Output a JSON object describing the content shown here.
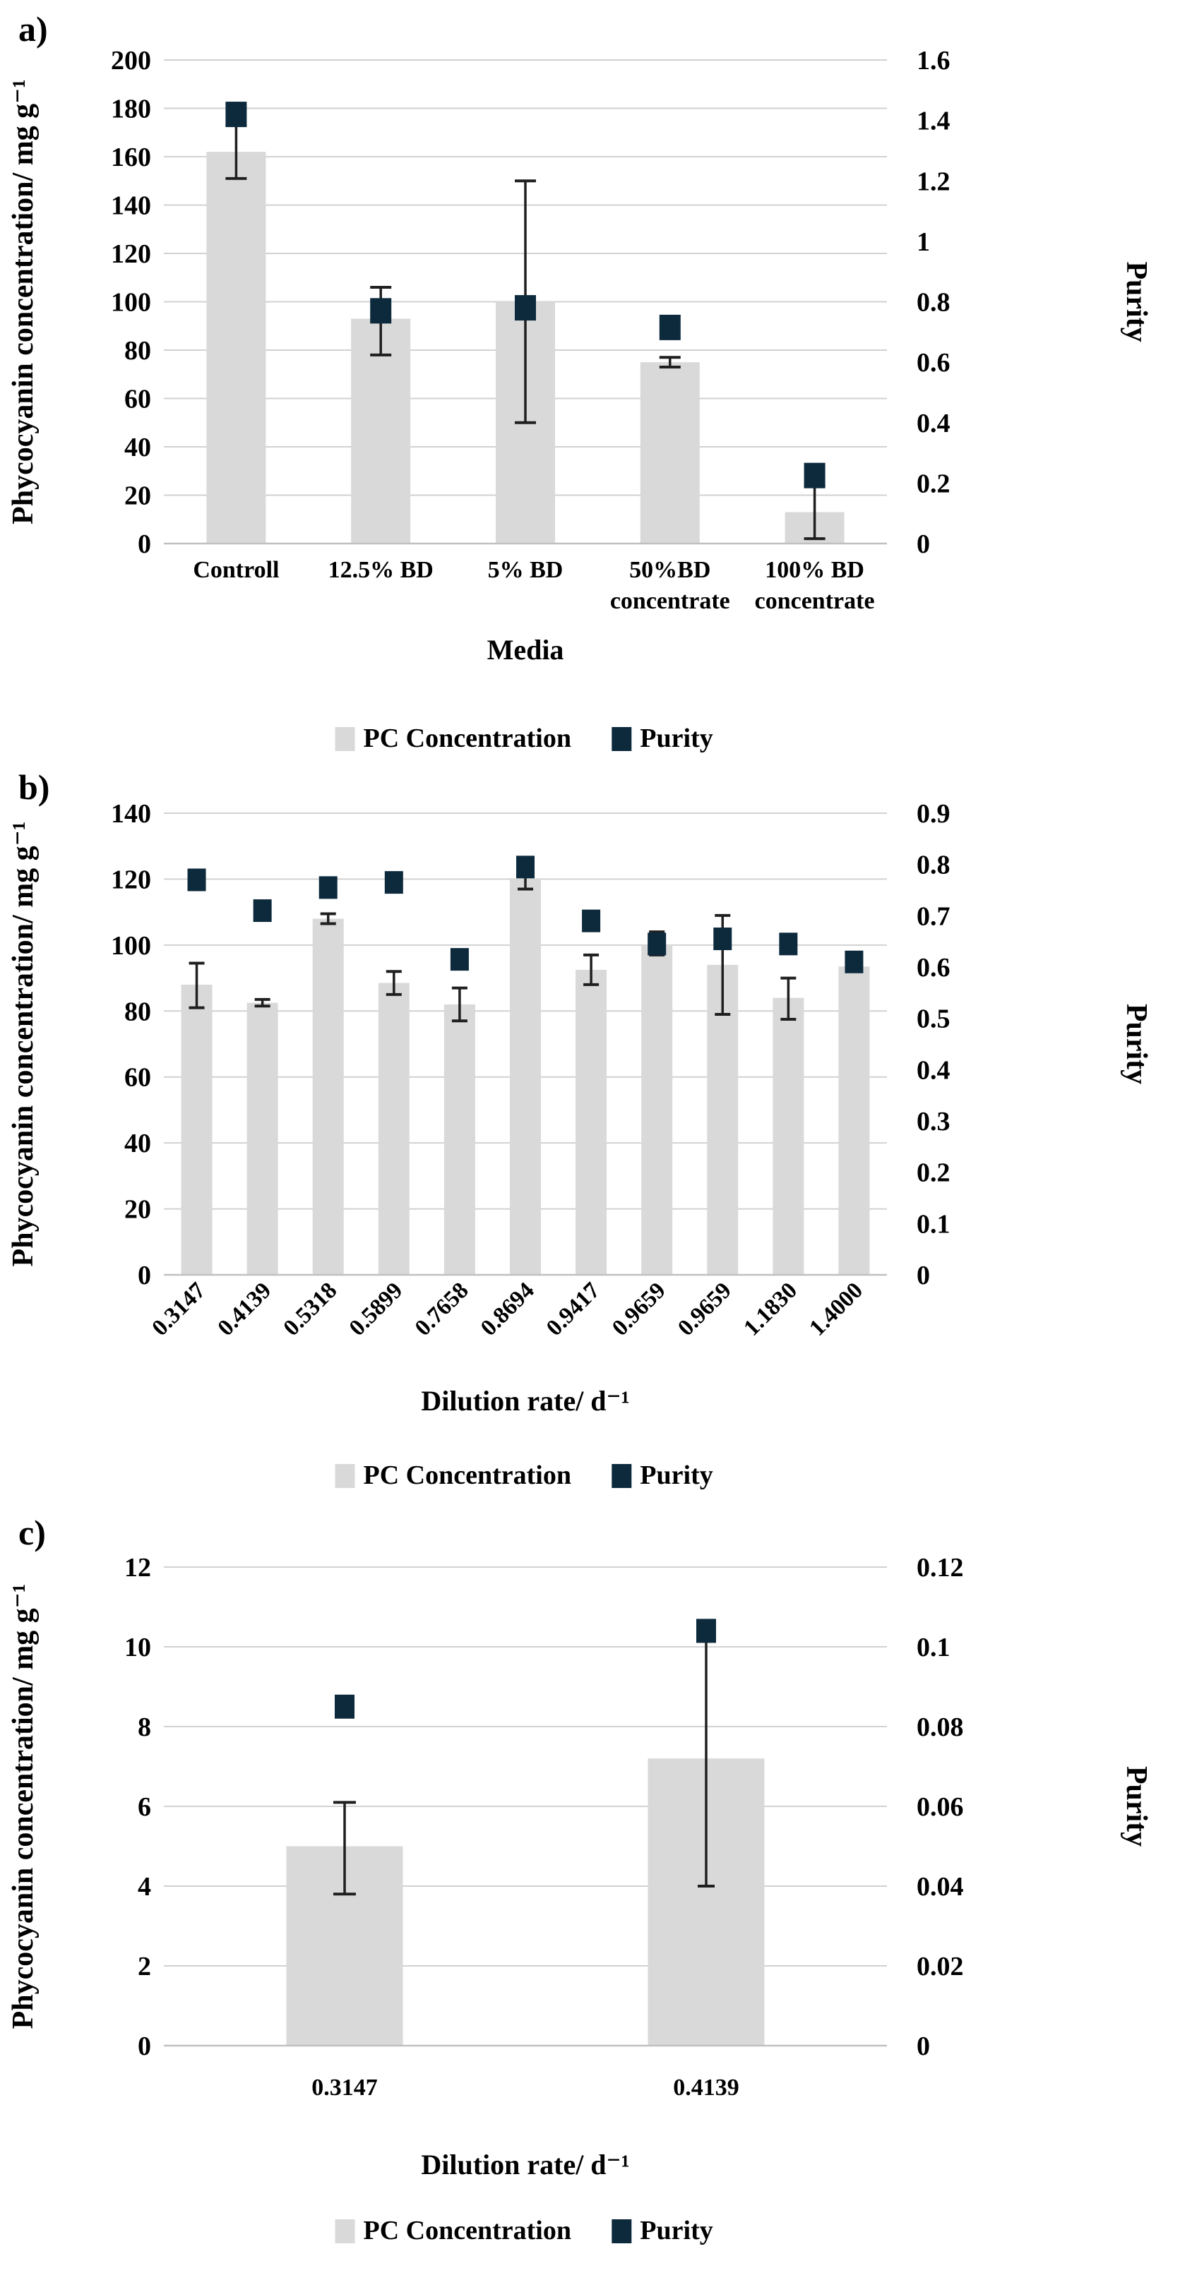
{
  "colors": {
    "bar": "#d9d9d9",
    "purity": "#0d2a3d",
    "grid": "#d2d2d2",
    "axis_line": "#c0c0c0",
    "error": "#1f1f1f",
    "text": "#000000"
  },
  "legend": {
    "pc_label": "PC Concentration",
    "purity_label": "Purity"
  },
  "chart_data": [
    {
      "type": "bar",
      "panel_label": "a)",
      "xlabel": "Media",
      "ylabel_left": "Phycocyanin concentration/ mg g⁻¹",
      "ylabel_right": "Purity",
      "categories": [
        "Controll",
        "12.5% BD",
        "5% BD",
        "50%BD\nconcentrate",
        "100% BD\nconcentrate"
      ],
      "x_tick_rotation": 0,
      "ylim_left": [
        0,
        200
      ],
      "ticks_left": [
        "0",
        "20",
        "40",
        "60",
        "80",
        "100",
        "120",
        "140",
        "160",
        "180",
        "200"
      ],
      "ylim_right": [
        0,
        1.6
      ],
      "ticks_right": [
        "0",
        "0.2",
        "0.4",
        "0.6",
        "0.8",
        "1",
        "1.2",
        "1.4",
        "1.6"
      ],
      "series": [
        {
          "name": "PC Concentration",
          "kind": "bar",
          "axis": "left",
          "values": [
            162,
            93,
            100,
            75,
            13
          ],
          "err_low": [
            11,
            15,
            50,
            2,
            11
          ],
          "err_high": [
            11,
            13,
            50,
            2,
            11
          ]
        },
        {
          "name": "Purity",
          "kind": "scatter",
          "axis": "right",
          "values": [
            1.42,
            0.77,
            0.78,
            0.715,
            0.225
          ],
          "err_low": [
            0,
            0,
            0,
            0,
            0
          ],
          "err_high": [
            0,
            0,
            0,
            0,
            0
          ]
        }
      ],
      "legend": [
        "PC Concentration",
        "Purity"
      ],
      "legend_position": "bottom"
    },
    {
      "type": "bar",
      "panel_label": "b)",
      "xlabel": "Dilution rate/ d⁻¹",
      "ylabel_left": "Phycocyanin concentration/ mg g⁻¹",
      "ylabel_right": "Purity",
      "categories": [
        "0.3147",
        "0.4139",
        "0.5318",
        "0.5899",
        "0.7658",
        "0.8694",
        "0.9417",
        "0.9659",
        "0.9659",
        "1.1830",
        "1.4000"
      ],
      "x_tick_rotation": 45,
      "ylim_left": [
        0,
        140
      ],
      "ticks_left": [
        "0",
        "20",
        "40",
        "60",
        "80",
        "100",
        "120",
        "140"
      ],
      "ylim_right": [
        0,
        0.9
      ],
      "ticks_right": [
        "0",
        "0.1",
        "0.2",
        "0.3",
        "0.4",
        "0.5",
        "0.6",
        "0.7",
        "0.8",
        "0.9"
      ],
      "series": [
        {
          "name": "PC Concentration",
          "kind": "bar",
          "axis": "left",
          "values": [
            88,
            82.5,
            108,
            88.5,
            82,
            120,
            92.5,
            100,
            94,
            84,
            93.5
          ],
          "err_low": [
            7,
            1,
            1.5,
            3.5,
            5,
            3,
            4.5,
            3,
            15,
            6.5,
            0
          ],
          "err_high": [
            6.5,
            1,
            1.5,
            3.5,
            5,
            2.5,
            4.5,
            4,
            15,
            6,
            0
          ]
        },
        {
          "name": "Purity",
          "kind": "scatter",
          "axis": "right",
          "values": [
            0.77,
            0.71,
            0.755,
            0.765,
            0.615,
            0.795,
            0.69,
            0.645,
            0.655,
            0.645,
            0.61
          ],
          "err_low": [
            0,
            0,
            0,
            0,
            0,
            0,
            0,
            0,
            0,
            0,
            0
          ],
          "err_high": [
            0,
            0,
            0,
            0,
            0,
            0,
            0,
            0,
            0,
            0,
            0
          ]
        }
      ],
      "legend": [
        "PC Concentration",
        "Purity"
      ],
      "legend_position": "bottom"
    },
    {
      "type": "bar",
      "panel_label": "c)",
      "xlabel": "Dilution rate/ d⁻¹",
      "ylabel_left": "Phycocyanin concentration/ mg g⁻¹",
      "ylabel_right": "Purity",
      "categories": [
        "0.3147",
        "0.4139"
      ],
      "x_tick_rotation": 0,
      "ylim_left": [
        0,
        12
      ],
      "ticks_left": [
        "0",
        "2",
        "4",
        "6",
        "8",
        "10",
        "12"
      ],
      "ylim_right": [
        0,
        0.12
      ],
      "ticks_right": [
        "0",
        "0.02",
        "0.04",
        "0.06",
        "0.08",
        "0.1",
        "0.12"
      ],
      "series": [
        {
          "name": "PC Concentration",
          "kind": "bar",
          "axis": "left",
          "values": [
            5.0,
            7.2
          ],
          "err_low": [
            1.2,
            0
          ],
          "err_high": [
            1.1,
            0
          ]
        },
        {
          "name": "Purity",
          "kind": "scatter",
          "axis": "right",
          "values": [
            0.085,
            0.104
          ],
          "err_low": [
            0,
            0.064
          ],
          "err_high": [
            0,
            0
          ]
        }
      ],
      "legend": [
        "PC Concentration",
        "Purity"
      ],
      "legend_position": "bottom"
    }
  ]
}
